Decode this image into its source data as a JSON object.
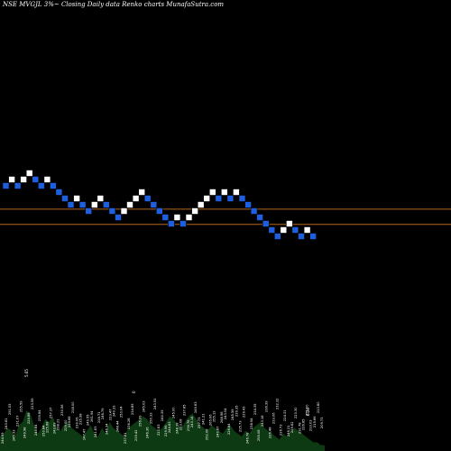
{
  "title": "NSE MVGJL  3%~  Closing Daily data  Renko  charts MunafaSutra.com",
  "colors": {
    "background": "#000000",
    "up_brick": "#ffffff",
    "down_brick": "#1e5fe0",
    "guide_line": "#b5651d",
    "volume_fill": "#0d3a12",
    "volume_text": "#ffffff"
  },
  "chart_data": {
    "type": "renko",
    "title": "NSE MVGJL  3%~  Closing Daily data  Renko  charts MunafaSutra.com",
    "brick_size_label": "3%",
    "bricks": [
      {
        "dir": "down",
        "level": 17
      },
      {
        "dir": "up",
        "level": 18
      },
      {
        "dir": "down",
        "level": 17
      },
      {
        "dir": "up",
        "level": 18
      },
      {
        "dir": "up",
        "level": 19
      },
      {
        "dir": "down",
        "level": 18
      },
      {
        "dir": "down",
        "level": 17
      },
      {
        "dir": "up",
        "level": 18
      },
      {
        "dir": "down",
        "level": 17
      },
      {
        "dir": "down",
        "level": 16
      },
      {
        "dir": "down",
        "level": 15
      },
      {
        "dir": "down",
        "level": 14
      },
      {
        "dir": "up",
        "level": 15
      },
      {
        "dir": "down",
        "level": 14
      },
      {
        "dir": "down",
        "level": 13
      },
      {
        "dir": "up",
        "level": 14
      },
      {
        "dir": "up",
        "level": 15
      },
      {
        "dir": "down",
        "level": 14
      },
      {
        "dir": "down",
        "level": 13
      },
      {
        "dir": "down",
        "level": 12
      },
      {
        "dir": "up",
        "level": 13
      },
      {
        "dir": "up",
        "level": 14
      },
      {
        "dir": "up",
        "level": 15
      },
      {
        "dir": "up",
        "level": 16
      },
      {
        "dir": "down",
        "level": 15
      },
      {
        "dir": "down",
        "level": 14
      },
      {
        "dir": "down",
        "level": 13
      },
      {
        "dir": "down",
        "level": 12
      },
      {
        "dir": "down",
        "level": 11
      },
      {
        "dir": "up",
        "level": 12
      },
      {
        "dir": "down",
        "level": 11
      },
      {
        "dir": "up",
        "level": 12
      },
      {
        "dir": "up",
        "level": 13
      },
      {
        "dir": "up",
        "level": 14
      },
      {
        "dir": "up",
        "level": 15
      },
      {
        "dir": "up",
        "level": 16
      },
      {
        "dir": "down",
        "level": 15
      },
      {
        "dir": "up",
        "level": 16
      },
      {
        "dir": "down",
        "level": 15
      },
      {
        "dir": "up",
        "level": 16
      },
      {
        "dir": "down",
        "level": 15
      },
      {
        "dir": "down",
        "level": 14
      },
      {
        "dir": "down",
        "level": 13
      },
      {
        "dir": "down",
        "level": 12
      },
      {
        "dir": "down",
        "level": 11
      },
      {
        "dir": "down",
        "level": 10
      },
      {
        "dir": "down",
        "level": 9
      },
      {
        "dir": "up",
        "level": 10
      },
      {
        "dir": "up",
        "level": 11
      },
      {
        "dir": "down",
        "level": 10
      },
      {
        "dir": "down",
        "level": 9
      },
      {
        "dir": "up",
        "level": 10
      },
      {
        "dir": "down",
        "level": 9
      }
    ],
    "guide_levels": [
      13.3,
      10.9
    ],
    "level_range": [
      0,
      20
    ],
    "volume_labels": [
      "244.99",
      "243.81",
      "251.05",
      "245.33",
      "231.07",
      "255.59",
      "249.98",
      "224.88",
      "223.59",
      "240.84",
      "239.84",
      "250.84",
      "225.68",
      "257.37",
      "243.89",
      "238.21",
      "230.56",
      "229.00",
      "224.68",
      "218.00",
      "230.06",
      "235.98",
      "247.47",
      "249.55",
      "261.94",
      "241.83",
      "216.71",
      "246.79",
      "246.34",
      "223.47",
      "240.33",
      "248.44",
      "253.04",
      "237.81",
      "236.28",
      "234.89",
      "219.42",
      "256.99",
      "245.03",
      "246.36",
      "250.33",
      "243.51",
      "223.83",
      "240.39",
      "229.96",
      "244.83",
      "245.00",
      "248.18",
      "223.08",
      "237.85",
      "236.78",
      "243.14",
      "249.63",
      "257.73",
      "241.21",
      "252.08",
      "265.06",
      "255.13",
      "240.87",
      "248.98",
      "243.04",
      "226.84",
      "245.59",
      "239.35",
      "235.73",
      "229.43",
      "246.78",
      "238.54",
      "234.35",
      "255.08",
      "243.18",
      "236.39",
      "226.48",
      "233.06",
      "232.32",
      "226.73",
      "224.31",
      "246.21",
      "229.82",
      "223.30",
      "231.78",
      "226.85",
      "251.00",
      "233.03",
      "215.66",
      "213.80",
      "209.73"
    ],
    "volume_spikes": [
      "5.65",
      "0",
      "6.26"
    ],
    "volume": [
      5,
      6,
      8,
      7,
      5,
      9,
      10,
      14,
      13,
      9,
      6,
      8,
      11,
      10,
      12,
      8,
      7,
      9,
      10,
      8,
      7,
      6,
      5,
      7,
      9,
      6,
      5,
      8,
      6,
      10,
      8,
      7,
      6,
      5,
      8,
      9,
      10,
      11,
      12,
      11,
      9,
      8,
      7,
      8,
      10,
      12,
      11,
      9,
      8,
      10,
      12,
      13,
      11,
      9,
      8,
      7,
      9,
      8,
      7,
      6,
      8,
      9,
      7,
      6,
      5,
      7,
      6,
      8,
      9,
      10,
      8,
      7,
      6,
      5,
      4,
      6,
      5,
      7,
      8,
      7,
      6,
      5,
      4,
      3,
      3,
      2,
      2
    ]
  }
}
